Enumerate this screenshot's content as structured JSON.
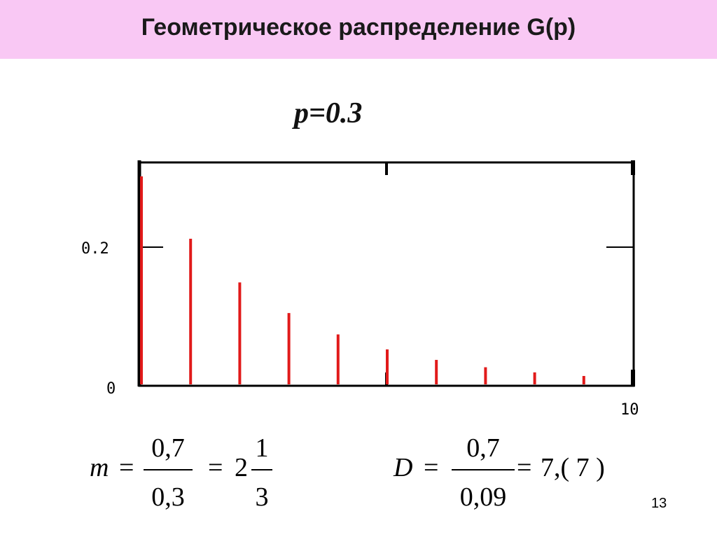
{
  "slide": {
    "title": "Геометрическое распределение G(p)",
    "param_label": "p=0.3",
    "page_number": "13"
  },
  "formulas": {
    "mean": {
      "lhs": "m",
      "eq": "=",
      "num": "0,7",
      "den": "0,3",
      "eq2": "=",
      "whole": "2",
      "frac_num": "1",
      "frac_den": "3"
    },
    "variance": {
      "lhs": "D",
      "eq": "=",
      "num": "0,7",
      "den": "0,09",
      "eq2": "=",
      "result": "7,( 7 )"
    }
  },
  "chart_data": {
    "type": "bar",
    "title": "",
    "xlabel": "",
    "ylabel": "",
    "x": [
      0,
      1,
      2,
      3,
      4,
      5,
      6,
      7,
      8,
      9
    ],
    "values": [
      0.3,
      0.21,
      0.147,
      0.1029,
      0.072,
      0.0504,
      0.0353,
      0.0247,
      0.0173,
      0.0121
    ],
    "xlim": [
      0,
      10
    ],
    "ylim": [
      0,
      0.32
    ],
    "ytick_labels": [
      "0",
      "0.2"
    ],
    "xtick_labels": [
      "10"
    ],
    "bar_color": "#e11a1a",
    "grid": false
  }
}
